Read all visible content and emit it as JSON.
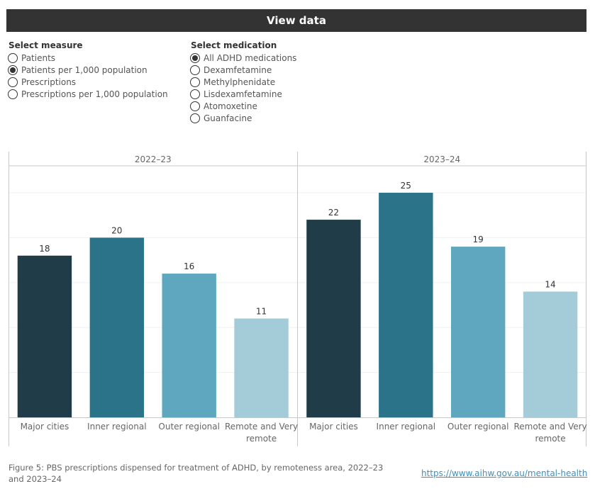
{
  "header": {
    "title": "View data"
  },
  "measure": {
    "title": "Select measure",
    "options": [
      "Patients",
      "Patients per 1,000 population",
      "Prescriptions",
      "Prescriptions per 1,000 population"
    ],
    "selected_index": 1
  },
  "medication": {
    "title": "Select medication",
    "options": [
      "All ADHD medications",
      "Dexamfetamine",
      "Methylphenidate",
      "Lisdexamfetamine",
      "Atomoxetine",
      "Guanfacine"
    ],
    "selected_index": 0
  },
  "chart_data": {
    "type": "bar",
    "panels": [
      "2022–23",
      "2023–24"
    ],
    "categories": [
      "Major cities",
      "Inner regional",
      "Outer regional",
      "Remote and Very remote"
    ],
    "values": [
      [
        18,
        20,
        16,
        11
      ],
      [
        22,
        25,
        19,
        14
      ]
    ],
    "colors": [
      "#1f3c48",
      "#2b7389",
      "#5fa7be",
      "#a4cbd8"
    ],
    "ylim": [
      0,
      28
    ],
    "grid": true
  },
  "caption": "Figure 5: PBS prescriptions dispensed for treatment of ADHD, by remoteness area, 2022–23 and 2023–24",
  "link": "https://www.aihw.gov.au/mental-health"
}
